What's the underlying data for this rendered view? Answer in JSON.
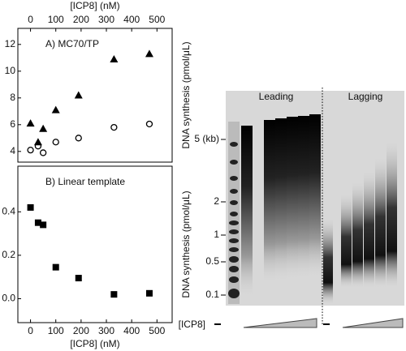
{
  "chart_data": [
    {
      "type": "scatter",
      "title": "A) MC70/TP",
      "xlabel": "[ICP8] (nM)",
      "ylabel": "DNA synthesis (pmol/μL)",
      "xaxis": "top",
      "xlim": [
        -50,
        560
      ],
      "xticks": [
        0,
        100,
        200,
        300,
        400,
        500
      ],
      "ylim": [
        3.2,
        13.2
      ],
      "yticks": [
        4,
        6,
        8,
        10,
        12
      ],
      "series": [
        {
          "marker": "triangle",
          "color": "#000000",
          "x": [
            0,
            30,
            50,
            100,
            190,
            330,
            470
          ],
          "values": [
            6.1,
            4.7,
            5.7,
            7.1,
            8.2,
            10.9,
            11.3
          ]
        },
        {
          "marker": "open-circle",
          "color": "#000000",
          "x": [
            0,
            30,
            50,
            100,
            190,
            330,
            470
          ],
          "values": [
            4.1,
            4.4,
            3.9,
            4.7,
            5.0,
            5.8,
            6.05
          ]
        }
      ]
    },
    {
      "type": "scatter",
      "title": "B) Linear template",
      "xlabel": "[ICP8] (nM)",
      "ylabel": "DNA synthesis (pmol/μL)",
      "xaxis": "bottom",
      "xlim": [
        -50,
        560
      ],
      "xticks": [
        0,
        100,
        200,
        300,
        400,
        500
      ],
      "ylim": [
        -0.11,
        0.61
      ],
      "yticks": [
        {
          "value": 0,
          "label": "0.0"
        },
        0.2,
        0.4
      ],
      "series": [
        {
          "marker": "square",
          "color": "#000000",
          "x": [
            0,
            30,
            50,
            100,
            190,
            330,
            470
          ],
          "values": [
            0.42,
            0.35,
            0.34,
            0.145,
            0.095,
            0.02,
            0.025
          ]
        }
      ]
    }
  ],
  "gel": {
    "leading": "Leading",
    "lagging": "Lagging",
    "sizes": [
      "5 (kb)",
      "2",
      "1",
      "0.5",
      "0.1"
    ],
    "titration": "[ICP8]"
  }
}
